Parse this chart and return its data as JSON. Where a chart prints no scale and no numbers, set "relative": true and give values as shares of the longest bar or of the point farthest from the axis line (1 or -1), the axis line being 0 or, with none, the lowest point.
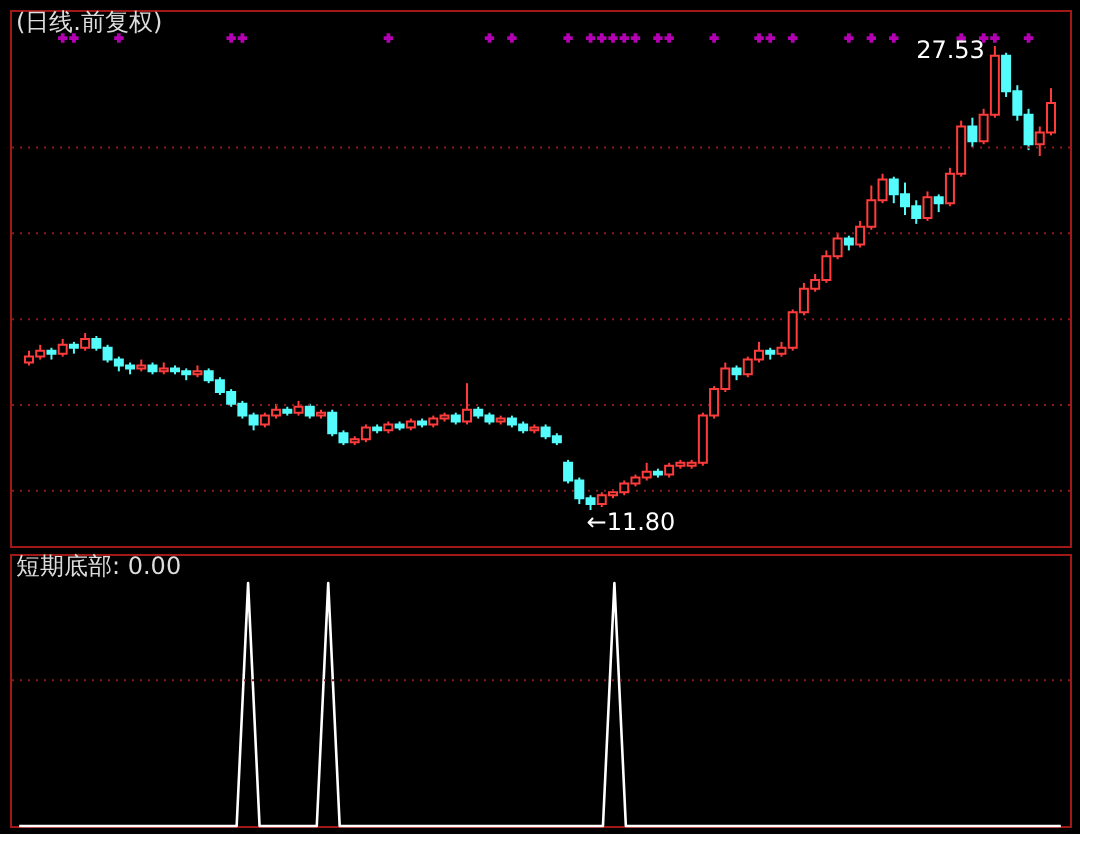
{
  "chart_data": [
    {
      "type": "candlestick",
      "title": "(日线.前复权)",
      "categories": [
        null,
        null,
        null,
        null,
        null,
        null,
        null,
        null,
        null,
        null,
        null,
        null,
        null,
        null,
        null,
        null,
        null,
        null,
        null,
        null,
        null,
        null,
        null,
        null,
        null,
        null,
        null,
        null,
        null,
        null,
        null,
        null,
        null,
        null,
        null,
        null,
        null,
        null,
        null,
        null,
        null,
        null,
        null,
        null,
        null,
        null,
        null,
        null,
        null,
        null,
        null,
        null,
        null,
        null,
        null,
        null,
        null,
        null,
        null,
        null,
        null,
        null,
        null,
        null,
        null,
        null,
        null,
        null,
        null,
        null,
        null,
        null,
        null,
        null,
        null,
        null,
        null,
        null,
        null,
        null,
        null,
        null,
        null,
        null,
        null,
        null,
        null,
        null,
        null,
        null,
        null,
        null
      ],
      "ohlc": [
        [
          16.8,
          17.2,
          16.7,
          17.0
        ],
        [
          17.0,
          17.4,
          16.9,
          17.2
        ],
        [
          17.2,
          17.3,
          16.9,
          17.1
        ],
        [
          17.1,
          17.6,
          17.0,
          17.4
        ],
        [
          17.4,
          17.5,
          17.1,
          17.3
        ],
        [
          17.3,
          17.8,
          17.2,
          17.6
        ],
        [
          17.6,
          17.7,
          17.2,
          17.3
        ],
        [
          17.3,
          17.4,
          16.8,
          16.9
        ],
        [
          16.9,
          17.0,
          16.5,
          16.7
        ],
        [
          16.7,
          16.8,
          16.4,
          16.6
        ],
        [
          16.6,
          16.9,
          16.5,
          16.7
        ],
        [
          16.7,
          16.8,
          16.4,
          16.5
        ],
        [
          16.5,
          16.8,
          16.4,
          16.6
        ],
        [
          16.6,
          16.7,
          16.4,
          16.5
        ],
        [
          16.5,
          16.6,
          16.2,
          16.4
        ],
        [
          16.4,
          16.7,
          16.3,
          16.5
        ],
        [
          16.5,
          16.6,
          16.1,
          16.2
        ],
        [
          16.2,
          16.3,
          15.7,
          15.8
        ],
        [
          15.8,
          15.9,
          15.3,
          15.4
        ],
        [
          15.4,
          15.5,
          14.9,
          15.0
        ],
        [
          15.0,
          15.1,
          14.5,
          14.7
        ],
        [
          14.7,
          15.1,
          14.6,
          15.0
        ],
        [
          15.0,
          15.4,
          14.9,
          15.2
        ],
        [
          15.2,
          15.3,
          15.0,
          15.1
        ],
        [
          15.1,
          15.5,
          15.0,
          15.3
        ],
        [
          15.3,
          15.4,
          14.9,
          15.0
        ],
        [
          15.0,
          15.2,
          14.9,
          15.1
        ],
        [
          15.1,
          15.2,
          14.3,
          14.4
        ],
        [
          14.4,
          14.5,
          14.0,
          14.1
        ],
        [
          14.1,
          14.3,
          14.0,
          14.2
        ],
        [
          14.2,
          14.7,
          14.1,
          14.6
        ],
        [
          14.6,
          14.7,
          14.4,
          14.5
        ],
        [
          14.5,
          14.8,
          14.4,
          14.7
        ],
        [
          14.7,
          14.8,
          14.5,
          14.6
        ],
        [
          14.6,
          14.9,
          14.5,
          14.8
        ],
        [
          14.8,
          14.9,
          14.6,
          14.7
        ],
        [
          14.7,
          15.0,
          14.6,
          14.9
        ],
        [
          14.9,
          15.1,
          14.8,
          15.0
        ],
        [
          15.0,
          15.1,
          14.7,
          14.8
        ],
        [
          14.8,
          16.1,
          14.7,
          15.2
        ],
        [
          15.2,
          15.3,
          14.9,
          15.0
        ],
        [
          15.0,
          15.1,
          14.7,
          14.8
        ],
        [
          14.8,
          15.0,
          14.7,
          14.9
        ],
        [
          14.9,
          15.0,
          14.6,
          14.7
        ],
        [
          14.7,
          14.8,
          14.4,
          14.5
        ],
        [
          14.5,
          14.7,
          14.4,
          14.6
        ],
        [
          14.6,
          14.7,
          14.2,
          14.3
        ],
        [
          14.3,
          14.4,
          14.0,
          14.1
        ],
        [
          13.4,
          13.5,
          12.7,
          12.8
        ],
        [
          12.8,
          12.9,
          12.0,
          12.2
        ],
        [
          12.2,
          12.3,
          11.8,
          12.0
        ],
        [
          12.0,
          12.4,
          11.9,
          12.3
        ],
        [
          12.3,
          12.5,
          12.2,
          12.4
        ],
        [
          12.4,
          12.8,
          12.3,
          12.7
        ],
        [
          12.7,
          13.0,
          12.6,
          12.9
        ],
        [
          12.9,
          13.4,
          12.8,
          13.1
        ],
        [
          13.1,
          13.2,
          12.9,
          13.0
        ],
        [
          13.0,
          13.4,
          12.9,
          13.3
        ],
        [
          13.3,
          13.5,
          13.2,
          13.4
        ],
        [
          13.3,
          13.5,
          13.2,
          13.4
        ],
        [
          13.4,
          15.1,
          13.3,
          15.0
        ],
        [
          15.0,
          16.0,
          14.9,
          15.9
        ],
        [
          15.9,
          16.8,
          15.8,
          16.6
        ],
        [
          16.6,
          16.7,
          16.2,
          16.4
        ],
        [
          16.4,
          17.0,
          16.3,
          16.9
        ],
        [
          16.9,
          17.5,
          16.8,
          17.2
        ],
        [
          17.2,
          17.3,
          16.9,
          17.1
        ],
        [
          17.1,
          17.5,
          17.0,
          17.3
        ],
        [
          17.3,
          18.6,
          17.2,
          18.5
        ],
        [
          18.5,
          19.5,
          18.4,
          19.3
        ],
        [
          19.3,
          19.8,
          19.2,
          19.6
        ],
        [
          19.6,
          20.6,
          19.5,
          20.4
        ],
        [
          20.4,
          21.2,
          20.3,
          21.0
        ],
        [
          21.0,
          21.1,
          20.6,
          20.8
        ],
        [
          20.8,
          21.6,
          20.7,
          21.4
        ],
        [
          21.4,
          22.8,
          21.3,
          22.3
        ],
        [
          22.3,
          23.2,
          22.2,
          23.0
        ],
        [
          23.0,
          23.1,
          22.2,
          22.5
        ],
        [
          22.5,
          22.9,
          21.8,
          22.1
        ],
        [
          22.1,
          22.3,
          21.5,
          21.7
        ],
        [
          21.7,
          22.6,
          21.6,
          22.4
        ],
        [
          22.4,
          22.5,
          21.9,
          22.2
        ],
        [
          22.2,
          23.4,
          22.1,
          23.2
        ],
        [
          23.2,
          25.0,
          23.1,
          24.8
        ],
        [
          24.8,
          25.1,
          24.1,
          24.3
        ],
        [
          24.3,
          25.4,
          24.2,
          25.2
        ],
        [
          25.2,
          27.53,
          25.1,
          27.2
        ],
        [
          27.2,
          27.3,
          25.8,
          26.0
        ],
        [
          26.0,
          26.2,
          25.0,
          25.2
        ],
        [
          25.2,
          25.4,
          24.0,
          24.2
        ],
        [
          24.2,
          24.8,
          23.8,
          24.6
        ],
        [
          24.6,
          26.1,
          24.5,
          25.6
        ]
      ],
      "colors": [
        "#ff3c3c",
        "#ff3c3c",
        "#54fcfc",
        "#ff3c3c",
        "#54fcfc",
        "#ff3c3c",
        "#54fcfc",
        "#54fcfc",
        "#54fcfc",
        "#54fcfc",
        "#ff3c3c",
        "#54fcfc",
        "#ff3c3c",
        "#54fcfc",
        "#54fcfc",
        "#ff3c3c",
        "#54fcfc",
        "#54fcfc",
        "#54fcfc",
        "#54fcfc",
        "#54fcfc",
        "#ff3c3c",
        "#ff3c3c",
        "#54fcfc",
        "#ff3c3c",
        "#54fcfc",
        "#ff3c3c",
        "#54fcfc",
        "#54fcfc",
        "#ff3c3c",
        "#ff3c3c",
        "#54fcfc",
        "#ff3c3c",
        "#54fcfc",
        "#ff3c3c",
        "#54fcfc",
        "#ff3c3c",
        "#ff3c3c",
        "#54fcfc",
        "#ff3c3c",
        "#54fcfc",
        "#54fcfc",
        "#ff3c3c",
        "#54fcfc",
        "#54fcfc",
        "#ff3c3c",
        "#54fcfc",
        "#54fcfc",
        "#54fcfc",
        "#54fcfc",
        "#54fcfc",
        "#ff3c3c",
        "#ff3c3c",
        "#ff3c3c",
        "#ff3c3c",
        "#ff3c3c",
        "#54fcfc",
        "#ff3c3c",
        "#ff3c3c",
        "#ff3c3c",
        "#ff3c3c",
        "#ff3c3c",
        "#ff3c3c",
        "#54fcfc",
        "#ff3c3c",
        "#ff3c3c",
        "#54fcfc",
        "#ff3c3c",
        "#ff3c3c",
        "#ff3c3c",
        "#ff3c3c",
        "#ff3c3c",
        "#ff3c3c",
        "#54fcfc",
        "#ff3c3c",
        "#ff3c3c",
        "#ff3c3c",
        "#54fcfc",
        "#54fcfc",
        "#54fcfc",
        "#ff3c3c",
        "#54fcfc",
        "#ff3c3c",
        "#ff3c3c",
        "#54fcfc",
        "#ff3c3c",
        "#ff3c3c",
        "#54fcfc",
        "#54fcfc",
        "#54fcfc",
        "#ff3c3c",
        "#ff3c3c"
      ],
      "ref_lines": [
        {
          "axis": "y",
          "value": 12.45,
          "color": "#8b1a1a",
          "line_style": "dotted"
        },
        {
          "axis": "y",
          "value": 15.36,
          "color": "#8b1a1a",
          "line_style": "dotted"
        },
        {
          "axis": "y",
          "value": 18.27,
          "color": "#8b1a1a",
          "line_style": "dotted"
        },
        {
          "axis": "y",
          "value": 21.18,
          "color": "#8b1a1a",
          "line_style": "dotted"
        },
        {
          "axis": "y",
          "value": 24.09,
          "color": "#8b1a1a",
          "line_style": "dotted"
        }
      ],
      "annotations": [
        "27.53",
        "←11.80"
      ],
      "series": [
        {
          "type": "scatter",
          "marker": "cross",
          "color": "#ff00ff",
          "values": [
            null,
            null,
            null,
            27.8,
            27.8,
            null,
            null,
            null,
            27.8,
            null,
            null,
            null,
            null,
            null,
            null,
            null,
            null,
            null,
            27.8,
            27.8,
            null,
            null,
            null,
            null,
            null,
            null,
            null,
            null,
            null,
            null,
            null,
            null,
            27.8,
            null,
            null,
            null,
            null,
            null,
            null,
            null,
            null,
            27.8,
            null,
            27.8,
            null,
            null,
            null,
            null,
            27.8,
            null,
            27.8,
            27.8,
            27.8,
            27.8,
            27.8,
            null,
            27.8,
            27.8,
            null,
            null,
            null,
            27.8,
            null,
            null,
            null,
            27.8,
            27.8,
            null,
            27.8,
            null,
            null,
            null,
            null,
            27.8,
            null,
            27.8,
            null,
            27.8,
            null,
            null,
            null,
            null,
            null,
            27.8,
            null,
            27.8,
            27.8,
            null,
            null,
            27.8,
            null,
            null
          ]
        }
      ]
    },
    {
      "type": "line",
      "title": "短期底部: 0.00",
      "categories": [
        null,
        null,
        null,
        null,
        null,
        null,
        null,
        null,
        null,
        null,
        null,
        null,
        null,
        null,
        null,
        null,
        null,
        null,
        null,
        null,
        null,
        null,
        null,
        null,
        null,
        null,
        null,
        null,
        null,
        null,
        null,
        null,
        null,
        null,
        null,
        null,
        null,
        null,
        null,
        null,
        null,
        null,
        null,
        null,
        null,
        null,
        null,
        null,
        null,
        null,
        null,
        null,
        null,
        null,
        null,
        null,
        null,
        null,
        null,
        null,
        null,
        null,
        null,
        null,
        null,
        null,
        null,
        null,
        null,
        null,
        null,
        null,
        null,
        null,
        null,
        null,
        null,
        null,
        null,
        null,
        null,
        null,
        null,
        null,
        null,
        null,
        null,
        null,
        null,
        null,
        null,
        null
      ],
      "relative": true,
      "color": "#ffffff",
      "values": [
        0,
        0,
        0,
        0,
        0,
        0,
        0,
        0,
        0,
        0,
        0,
        0,
        0,
        0,
        0,
        0,
        0,
        0,
        0,
        0,
        1,
        0,
        0,
        0,
        0,
        0,
        0,
        1,
        0,
        0,
        0,
        0,
        0,
        0,
        0,
        0,
        0,
        0,
        0,
        0,
        0,
        0,
        0,
        0,
        0,
        0,
        0,
        0,
        0,
        0,
        0,
        0,
        1,
        0,
        0,
        0,
        0,
        0,
        0,
        0,
        0,
        0,
        0,
        0,
        0,
        0,
        0,
        0,
        0,
        0,
        0,
        0,
        0,
        0,
        0,
        0,
        0,
        0,
        0,
        0,
        0,
        0,
        0,
        0,
        0,
        0,
        0,
        0,
        0,
        0,
        0,
        0
      ],
      "ref_lines": [
        {
          "axis": "y",
          "value": 0.6,
          "color": "#8b1a1a",
          "line_style": "dotted"
        }
      ]
    }
  ]
}
